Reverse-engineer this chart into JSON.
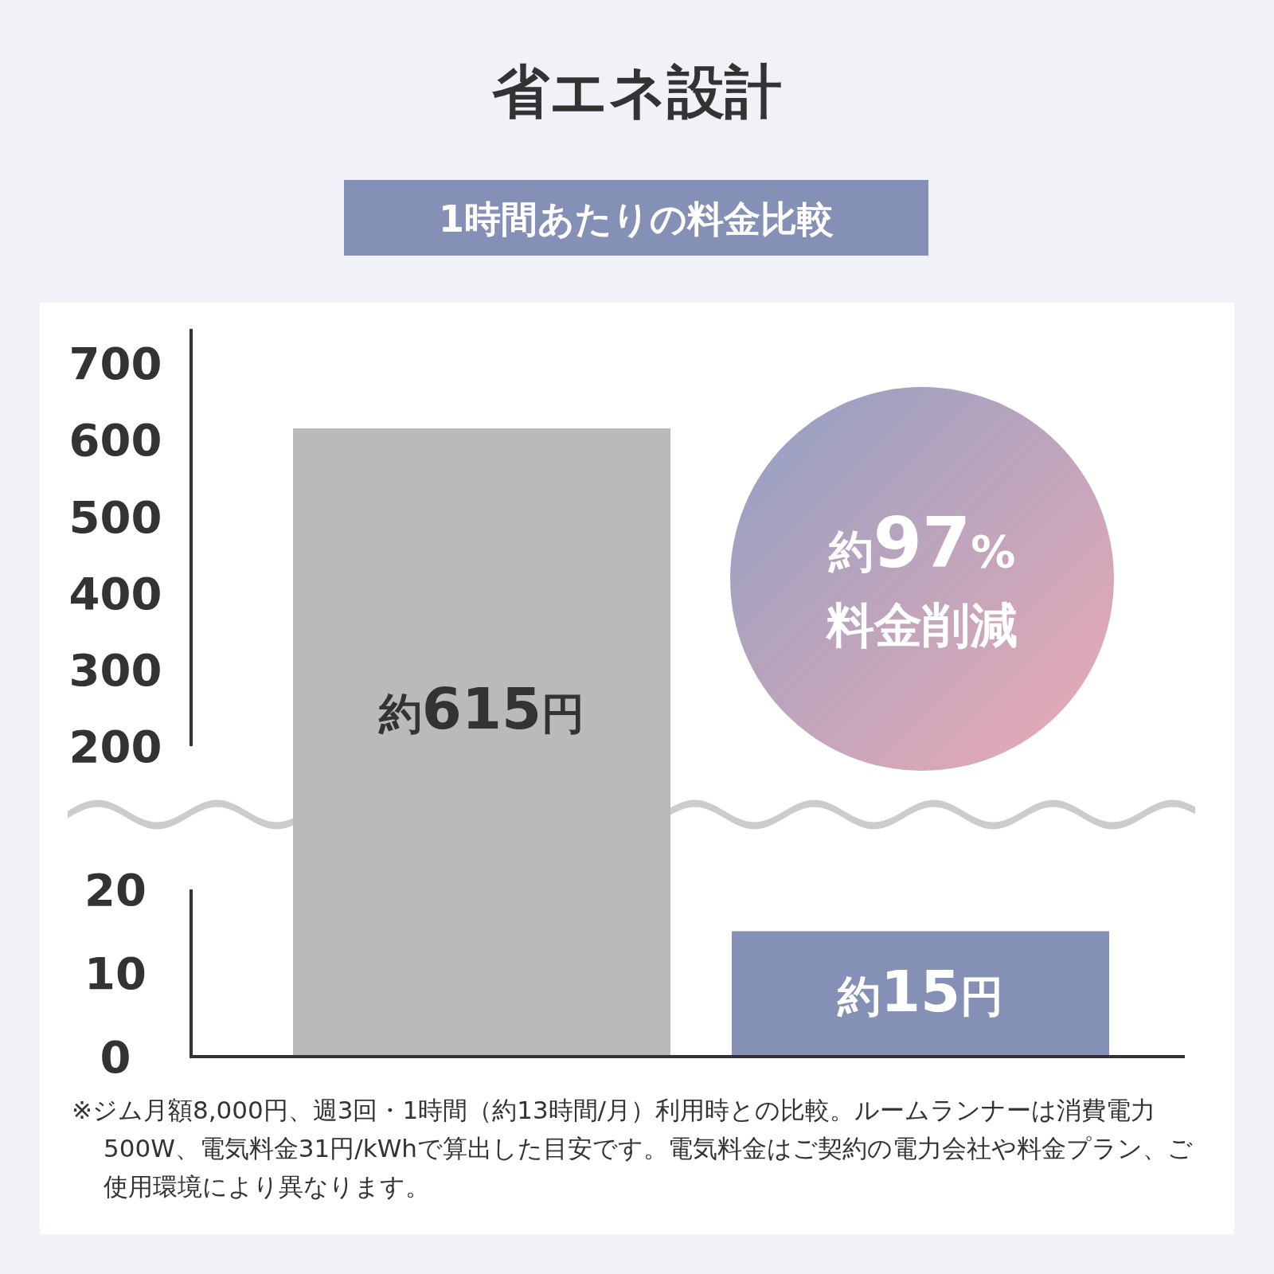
{
  "chart_data": [
    {
      "type": "bar",
      "title": "省エネ設計",
      "subtitle": "1時間あたりの料金比較",
      "categories": [
        null
      ],
      "values": [
        615
      ],
      "colors": [
        "#bababa"
      ],
      "value_labels": [
        "約615円"
      ],
      "ylim": [
        200,
        745
      ],
      "yticks": [
        200,
        300,
        400,
        500,
        600,
        700
      ],
      "annotations": [
        "約97%",
        "料金削減"
      ]
    },
    {
      "type": "bar",
      "categories": [
        null,
        null
      ],
      "values": [
        null,
        15
      ],
      "colors": [
        "#bababa",
        "#8490b5"
      ],
      "value_labels": [
        null,
        "約15円"
      ],
      "ylim": [
        0,
        20
      ],
      "yticks": [
        0,
        10,
        20
      ],
      "annotations": [
        "※ジム月額8,000円、週3回・1時間（約13時間/月）利用時との比較。ルームランナーは消費電力500W、電気料金31円/kWhで算出した目安です。電気料金はご契約の電力会社や料金プラン、ご使用環境により異なります。"
      ]
    }
  ]
}
